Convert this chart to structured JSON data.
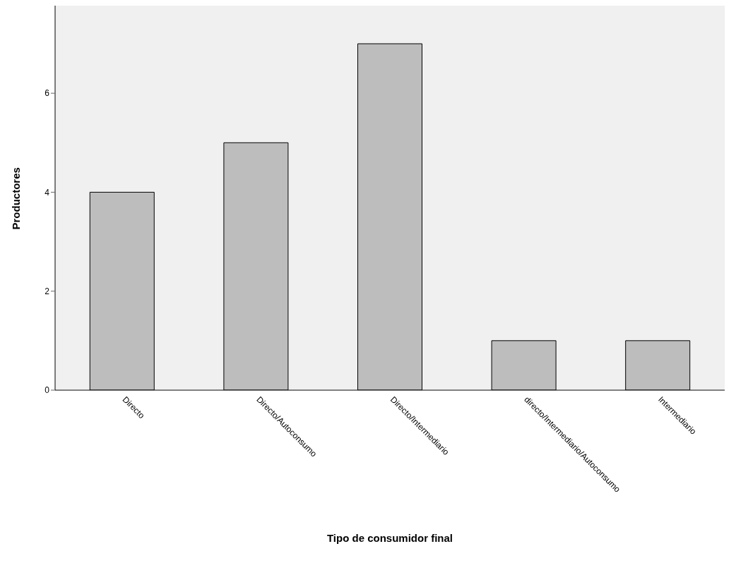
{
  "chart_data": {
    "type": "bar",
    "xlabel": "Tipo de consumidor final",
    "ylabel": "Productores",
    "categories": [
      "Directo",
      "Directo/Autoconsumo",
      "Directo/Intermediario",
      "directo/Intermediario/Autoconsumo",
      "Intermediario"
    ],
    "values": [
      4,
      5,
      7,
      1,
      1
    ],
    "color": "#bdbdbd",
    "ylim": [
      0,
      7.77
    ],
    "yticks": [
      0,
      2,
      4,
      6
    ],
    "grid": false,
    "legend": false
  }
}
